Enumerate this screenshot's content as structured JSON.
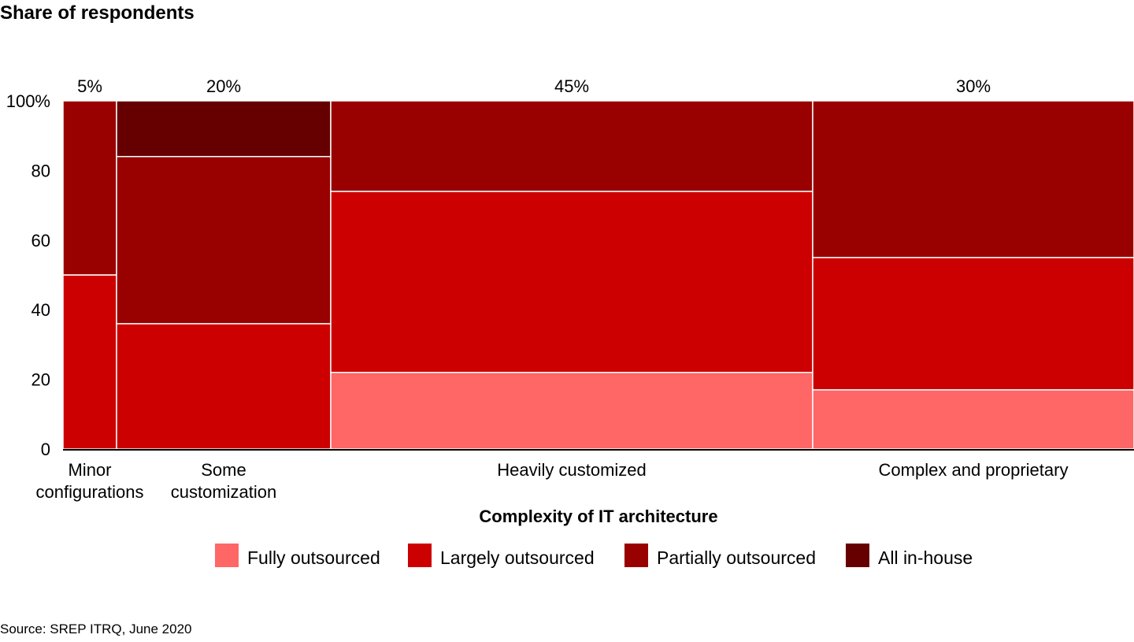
{
  "chart_data": {
    "type": "bar",
    "variant": "marimekko",
    "title": "Share of respondents",
    "xlabel": "Complexity of IT architecture",
    "ylabel": "",
    "ylim": [
      0,
      100
    ],
    "yticks": [
      "0",
      "20",
      "40",
      "60",
      "80",
      "100%"
    ],
    "categories": [
      {
        "lines": [
          "Minor",
          "configurations"
        ],
        "width_label": "5%",
        "width": 5
      },
      {
        "lines": [
          "Some",
          "customization"
        ],
        "width_label": "20%",
        "width": 20
      },
      {
        "lines": [
          "Heavily customized"
        ],
        "width_label": "45%",
        "width": 45
      },
      {
        "lines": [
          "Complex and proprietary"
        ],
        "width_label": "30%",
        "width": 30
      }
    ],
    "series": [
      {
        "name": "Fully outsourced",
        "color": "#ff6666",
        "values": [
          0,
          0,
          22,
          17
        ]
      },
      {
        "name": "Largely outsourced",
        "color": "#cc0000",
        "values": [
          50,
          36,
          52,
          38
        ]
      },
      {
        "name": "Partially outsourced",
        "color": "#990000",
        "values": [
          50,
          48,
          26,
          45
        ]
      },
      {
        "name": "All in-house",
        "color": "#660000",
        "values": [
          0,
          16,
          0,
          0
        ]
      }
    ],
    "legend_position": "bottom",
    "grid": false
  },
  "source": "Source: SREP ITRQ, June 2020"
}
